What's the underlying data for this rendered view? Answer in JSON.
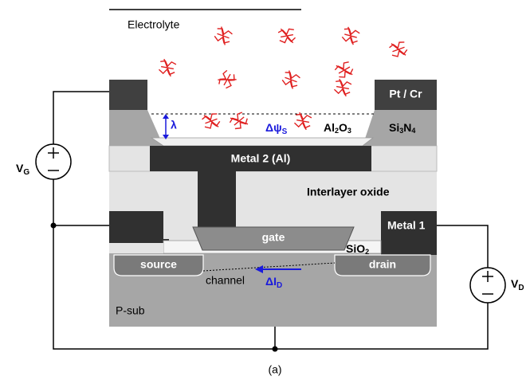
{
  "labels": {
    "electrolyte": "Electrolyte",
    "pt_cr": "Pt / Cr",
    "lambda": "λ",
    "delta_psi": {
      "base": "Δψ",
      "sub": "S"
    },
    "al2o3": [
      "Al",
      "2",
      "O",
      "3"
    ],
    "si3n4": [
      "Si",
      "3",
      "N",
      "4"
    ],
    "vg": {
      "base": "V",
      "sub": "G"
    },
    "metal2": "Metal 2 (Al)",
    "interlayer": "Interlayer oxide",
    "metal1": "Metal 1",
    "gate": "gate",
    "sio2": [
      "SiO",
      "2"
    ],
    "source": "source",
    "drain": "drain",
    "channel": "channel",
    "delta_id": {
      "base": "ΔI",
      "sub": "D"
    },
    "vd": {
      "base": "V",
      "sub": "D"
    },
    "psub": "P-sub",
    "caption": "(a)"
  }
}
